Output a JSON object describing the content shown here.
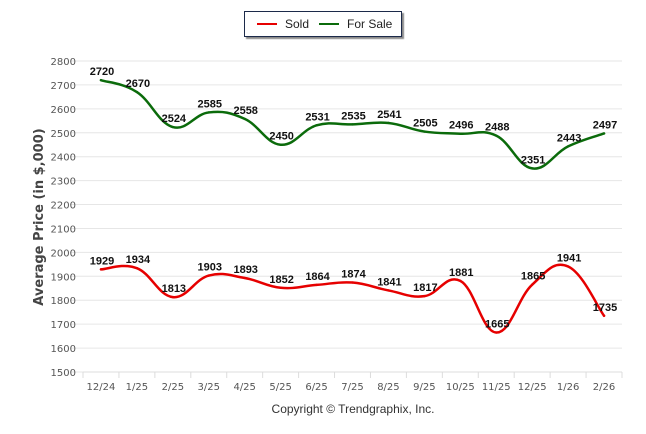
{
  "chart_data": {
    "type": "line",
    "title": "",
    "xlabel": "",
    "ylabel": "Average Price (in $,000)",
    "ylim": [
      1500,
      2800
    ],
    "ytick_step": 100,
    "grid": true,
    "legend_position": "top-center",
    "categories": [
      "12/24",
      "1/25",
      "2/25",
      "3/25",
      "4/25",
      "5/25",
      "6/25",
      "7/25",
      "8/25",
      "9/25",
      "10/25",
      "11/25",
      "12/25",
      "1/26",
      "2/26"
    ],
    "series": [
      {
        "name": "Sold",
        "color": "#e60000",
        "values": [
          1929,
          1934,
          1813,
          1903,
          1893,
          1852,
          1864,
          1874,
          1841,
          1817,
          1881,
          1665,
          1865,
          1941,
          1735
        ]
      },
      {
        "name": "For Sale",
        "color": "#0b6b0b",
        "values": [
          2720,
          2670,
          2524,
          2585,
          2558,
          2450,
          2531,
          2535,
          2541,
          2505,
          2496,
          2488,
          2351,
          2443,
          2497
        ]
      }
    ]
  },
  "legend": {
    "items": [
      {
        "label": "Sold",
        "color": "#e60000"
      },
      {
        "label": "For Sale",
        "color": "#0b6b0b"
      }
    ]
  },
  "footer": {
    "copyright": "Copyright © Trendgraphix, Inc."
  }
}
